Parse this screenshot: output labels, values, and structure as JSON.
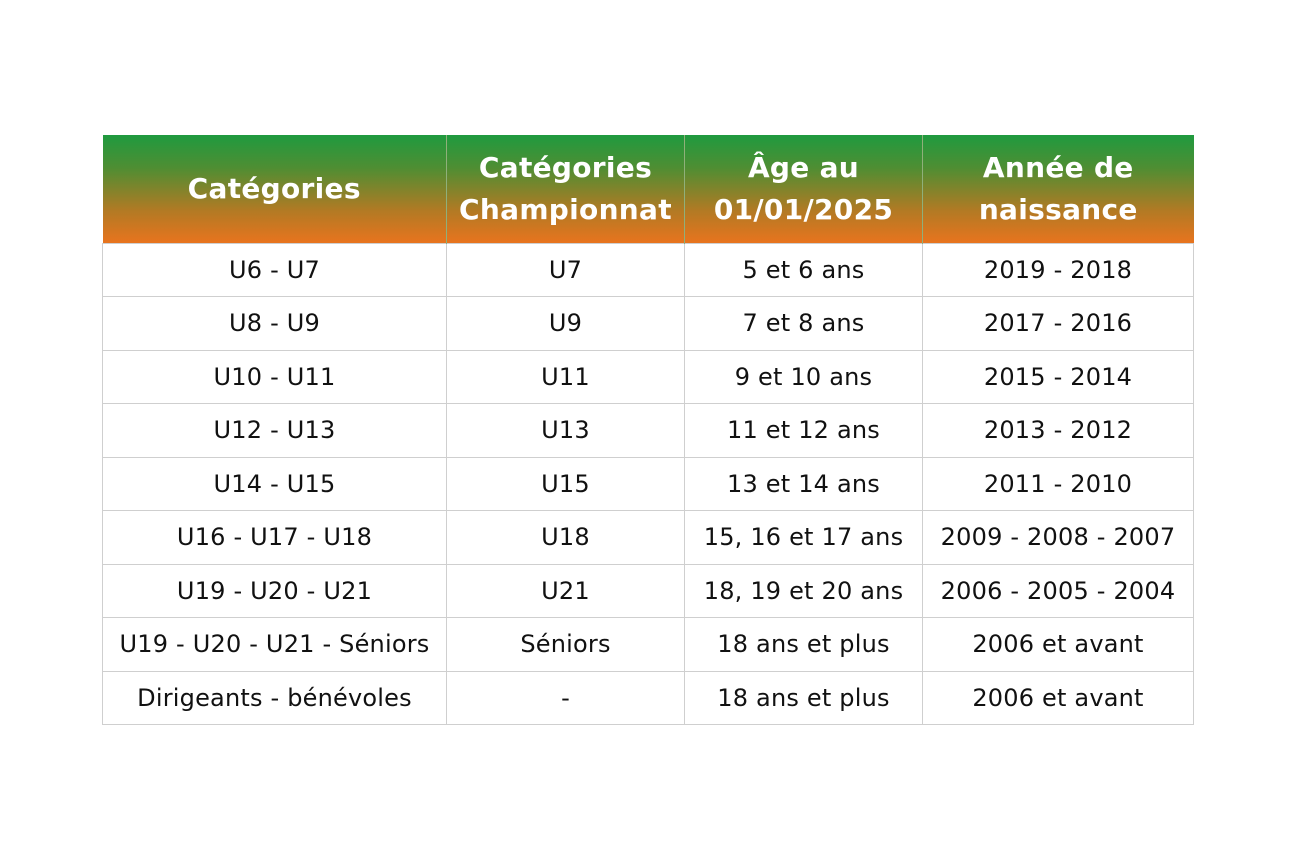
{
  "table": {
    "headers": [
      {
        "lines": [
          "Catégories"
        ]
      },
      {
        "lines": [
          "Catégories",
          "Championnat"
        ]
      },
      {
        "lines": [
          "Âge au",
          "01/01/2025"
        ]
      },
      {
        "lines": [
          "Année de",
          "naissance"
        ]
      }
    ],
    "rows": [
      [
        "U6 - U7",
        "U7",
        "5 et 6 ans",
        "2019 - 2018"
      ],
      [
        "U8 - U9",
        "U9",
        "7 et 8 ans",
        "2017 - 2016"
      ],
      [
        "U10 - U11",
        "U11",
        "9 et 10 ans",
        "2015 - 2014"
      ],
      [
        "U12 - U13",
        "U13",
        "11 et 12 ans",
        "2013 - 2012"
      ],
      [
        "U14 - U15",
        "U15",
        "13 et 14 ans",
        "2011 - 2010"
      ],
      [
        "U16 - U17 - U18",
        "U18",
        "15, 16 et 17 ans",
        "2009 - 2008 - 2007"
      ],
      [
        "U19 - U20 - U21",
        "U21",
        "18, 19 et 20 ans",
        "2006 - 2005 - 2004"
      ],
      [
        "U19 - U20 - U21 - Séniors",
        "Séniors",
        "18 ans et plus",
        "2006 et avant"
      ],
      [
        "Dirigeants - bénévoles",
        "-",
        "18 ans et plus",
        "2006 et avant"
      ]
    ]
  },
  "colors": {
    "header_top": "#1f9a3f",
    "header_bottom": "#e8741e",
    "header_text": "#ffffff",
    "cell_border": "#cfcfcf"
  }
}
